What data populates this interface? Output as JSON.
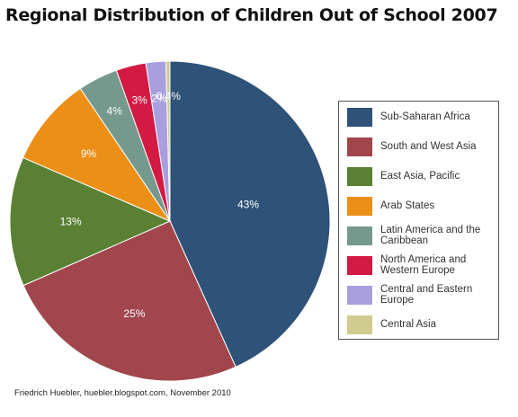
{
  "title": "Regional Distribution of Children Out of School 2007",
  "source": "Friedrich Huebler, huebler.blogspot.com, November 2010",
  "chart_data": {
    "type": "pie",
    "title": "Regional Distribution of Children Out of School 2007",
    "legend_position": "right",
    "slices": [
      {
        "label": "Sub-Saharan Africa",
        "value": 43,
        "value_label": "43%",
        "color": "#2e5278"
      },
      {
        "label": "South and West Asia",
        "value": 25,
        "value_label": "25%",
        "color": "#a0464c"
      },
      {
        "label": "East Asia, Pacific",
        "value": 13,
        "value_label": "13%",
        "color": "#5a8033"
      },
      {
        "label": "Arab States",
        "value": 9,
        "value_label": "9%",
        "color": "#eb8f17"
      },
      {
        "label": "Latin America and the Caribbean",
        "value": 4,
        "value_label": "4%",
        "color": "#76998e"
      },
      {
        "label": "North America and Western Europe",
        "value": 3,
        "value_label": "3%",
        "color": "#d21a43"
      },
      {
        "label": "Central and Eastern Europe",
        "value": 2,
        "value_label": "2%",
        "color": "#a99fdf"
      },
      {
        "label": "Central Asia",
        "value": 0.4,
        "value_label": "0.4%",
        "color": "#d0cb8f"
      }
    ]
  }
}
